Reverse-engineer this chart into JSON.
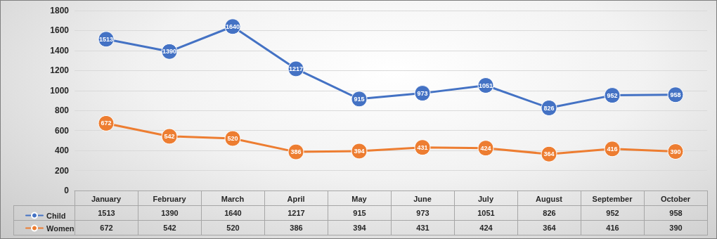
{
  "chart_data": {
    "type": "line",
    "categories": [
      "January",
      "February",
      "March",
      "April",
      "May",
      "June",
      "July",
      "August",
      "September",
      "October"
    ],
    "series": [
      {
        "name": "Child",
        "color": "#4472c4",
        "values": [
          1513,
          1390,
          1640,
          1217,
          915,
          973,
          1051,
          826,
          952,
          958
        ]
      },
      {
        "name": "Women",
        "color": "#ed7d31",
        "values": [
          672,
          542,
          520,
          386,
          394,
          431,
          424,
          364,
          416,
          390
        ]
      }
    ],
    "annotations": [
      {
        "text": "1513",
        "x": "January",
        "y": 1513
      },
      {
        "text": "1390",
        "x": "February",
        "y": 1390
      },
      {
        "text": "1640",
        "x": "March",
        "y": 1640
      },
      {
        "text": "1217",
        "x": "April",
        "y": 1217
      },
      {
        "text": "915",
        "x": "May",
        "y": 915
      },
      {
        "text": "973",
        "x": "June",
        "y": 973
      },
      {
        "text": "1051",
        "x": "July",
        "y": 1051
      },
      {
        "text": "826",
        "x": "August",
        "y": 826
      },
      {
        "text": "952",
        "x": "September",
        "y": 952
      },
      {
        "text": "958",
        "x": "October",
        "y": 958
      },
      {
        "text": "672",
        "x": "January",
        "y": 672
      },
      {
        "text": "542",
        "x": "February",
        "y": 542
      },
      {
        "text": "520",
        "x": "March",
        "y": 520
      },
      {
        "text": "386",
        "x": "April",
        "y": 386
      },
      {
        "text": "394",
        "x": "May",
        "y": 394
      },
      {
        "text": "431",
        "x": "June",
        "y": 431
      },
      {
        "text": "424",
        "x": "July",
        "y": 424
      },
      {
        "text": "364",
        "x": "August",
        "y": 364
      },
      {
        "text": "416",
        "x": "September",
        "y": 416
      },
      {
        "text": "390",
        "x": "October",
        "y": 390
      }
    ],
    "ylim": [
      0,
      1800
    ],
    "yticks": [
      0,
      200,
      400,
      600,
      800,
      1000,
      1200,
      1400,
      1600,
      1800
    ],
    "grid": "y",
    "legend": "bottom left",
    "marker": "circle",
    "line_style": "solid",
    "data_labels": true
  }
}
